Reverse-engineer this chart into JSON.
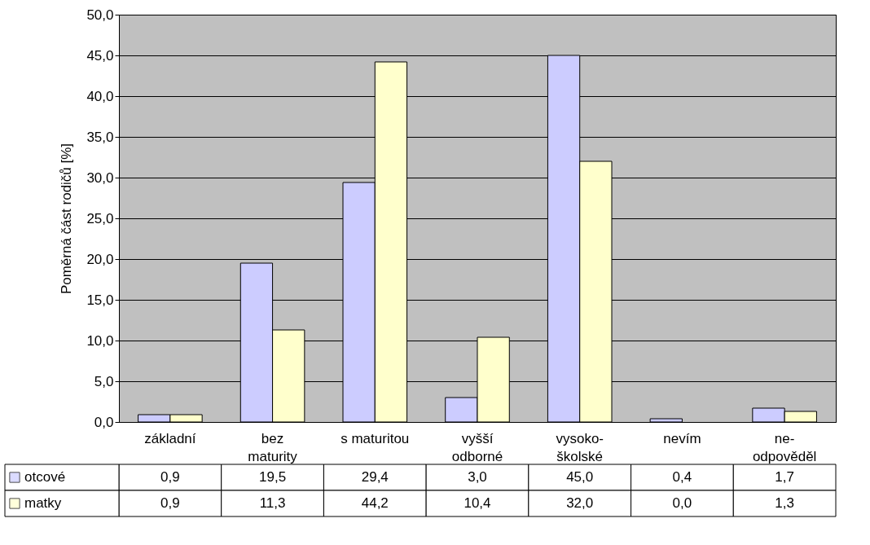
{
  "chart_data": {
    "type": "bar",
    "ylabel": "Poměrná část rodičů [%]",
    "categories": [
      "základní",
      "bez maturity",
      "s maturitou",
      "vyšší odborné",
      "vysoko- školské",
      "nevím",
      "ne- odpověděl"
    ],
    "series": [
      {
        "name": "otcové",
        "color": "#ccccff",
        "values": [
          0.9,
          19.5,
          29.4,
          3.0,
          45.0,
          0.4,
          1.7
        ],
        "value_labels": [
          "0,9",
          "19,5",
          "29,4",
          "3,0",
          "45,0",
          "0,4",
          "1,7"
        ]
      },
      {
        "name": "matky",
        "color": "#ffffcc",
        "values": [
          0.9,
          11.3,
          44.2,
          10.4,
          32.0,
          0.0,
          1.3
        ],
        "value_labels": [
          "0,9",
          "11,3",
          "44,2",
          "10,4",
          "32,0",
          "0,0",
          "1,3"
        ]
      }
    ],
    "ylim": [
      0,
      50
    ],
    "yticks": [
      {
        "value": 0,
        "label": "0,0"
      },
      {
        "value": 5,
        "label": "5,0"
      },
      {
        "value": 10,
        "label": "10,0"
      },
      {
        "value": 15,
        "label": "15,0"
      },
      {
        "value": 20,
        "label": "20,0"
      },
      {
        "value": 25,
        "label": "25,0"
      },
      {
        "value": 30,
        "label": "30,0"
      },
      {
        "value": 35,
        "label": "35,0"
      },
      {
        "value": 40,
        "label": "40,0"
      },
      {
        "value": 45,
        "label": "45,0"
      },
      {
        "value": 50,
        "label": "50,0"
      }
    ],
    "grid": "y",
    "legend": "bottom left"
  }
}
